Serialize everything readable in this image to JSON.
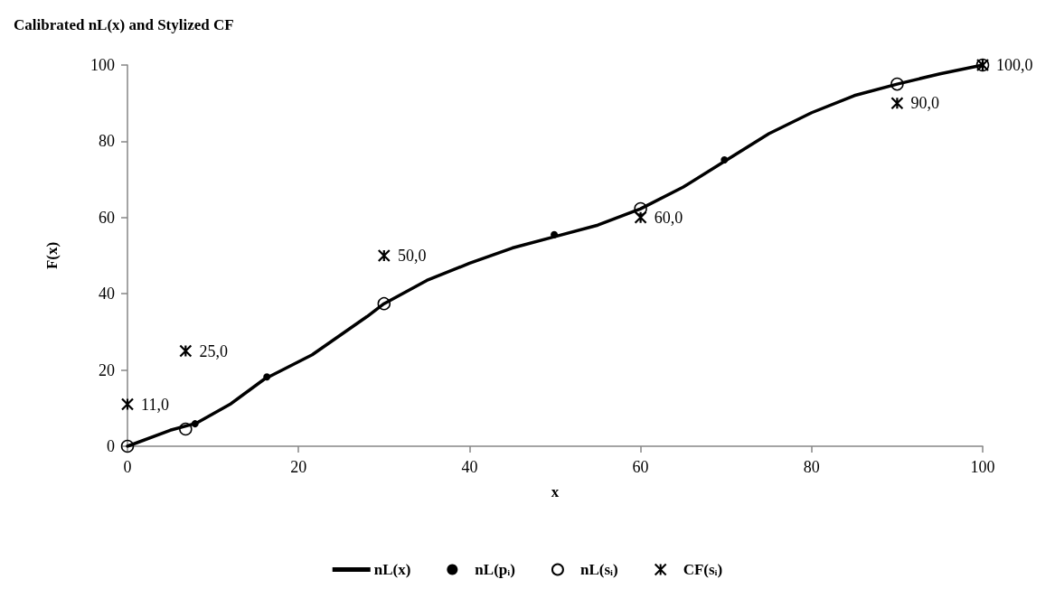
{
  "chart_data": {
    "type": "line",
    "title": "Calibrated nL(x) and Stylized CF",
    "xlabel": "x",
    "ylabel": "F(x)",
    "xlim": [
      0,
      100
    ],
    "xticks": [
      0,
      20,
      40,
      60,
      80,
      100
    ],
    "ylim": [
      0,
      100
    ],
    "yticks": [
      0,
      20,
      40,
      60,
      80,
      100
    ],
    "grid": false,
    "legend": "bottom",
    "series": [
      {
        "name": "nL(x)",
        "color": "#000000",
        "marker": "none",
        "line_style": "solid",
        "x": [
          0,
          5,
          8,
          12,
          16,
          21.6,
          28,
          30,
          35,
          40,
          45,
          50,
          55,
          60,
          65,
          70,
          75,
          80,
          85,
          90,
          95,
          100
        ],
        "values": [
          0,
          4.2,
          6,
          11,
          17.6,
          24,
          34,
          37.4,
          43.5,
          48,
          52,
          55,
          58,
          62.3,
          68,
          75,
          82,
          87.5,
          92,
          95,
          97.7,
          100
        ]
      },
      {
        "name": "nL(pᵢ)",
        "type": "scatter",
        "color": "#000000",
        "marker": "circle",
        "x": [
          7.9,
          16.3,
          49.9,
          69.8
        ],
        "values": [
          5.9,
          18.2,
          55.5,
          75.1
        ]
      },
      {
        "name": "nL(sᵢ)",
        "type": "scatter",
        "color": "#000000",
        "marker": "circle",
        "x": [
          0,
          6.8,
          30,
          60,
          90,
          100
        ],
        "values": [
          0,
          4.5,
          37.4,
          62.3,
          95,
          100
        ]
      },
      {
        "name": "CF(sᵢ)",
        "type": "scatter",
        "color": "#000000",
        "marker": "cross",
        "x": [
          0,
          6.8,
          30,
          60,
          90,
          100
        ],
        "values": [
          11,
          25,
          50,
          60,
          90,
          100
        ],
        "value_labels": [
          "11,0",
          "25,0",
          "50,0",
          "60,0",
          "90,0",
          "100,0"
        ]
      }
    ]
  }
}
